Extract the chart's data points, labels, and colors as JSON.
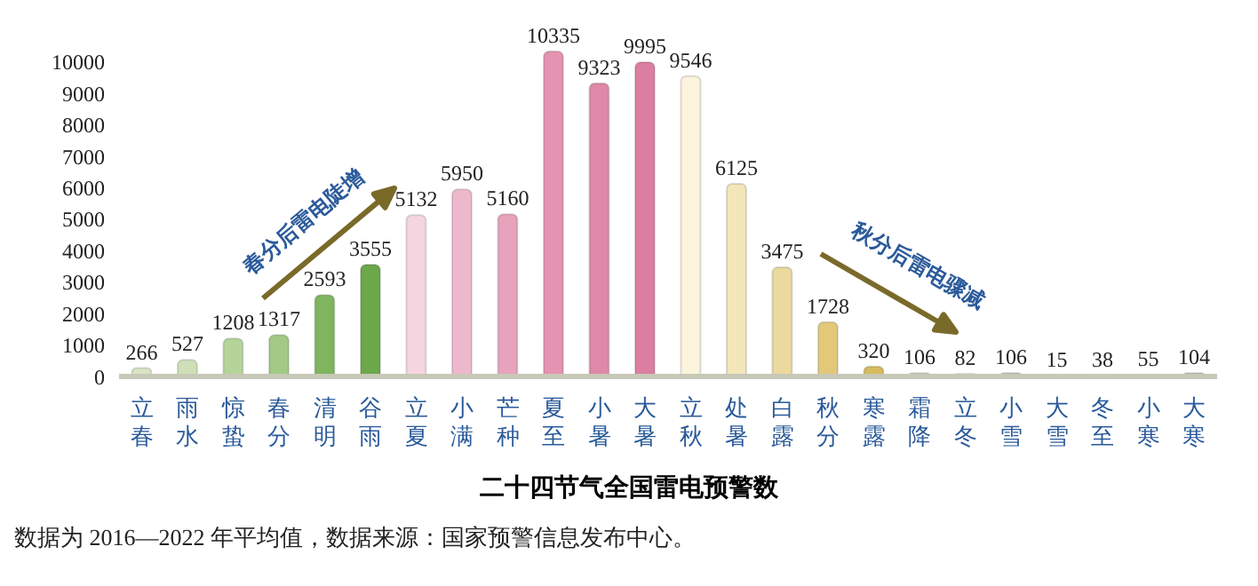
{
  "chart_data": {
    "type": "bar",
    "title": "二十四节气全国雷电预警数",
    "categories": [
      "立春",
      "雨水",
      "惊蛰",
      "春分",
      "清明",
      "谷雨",
      "立夏",
      "小满",
      "芒种",
      "夏至",
      "小暑",
      "大暑",
      "立秋",
      "处暑",
      "白露",
      "秋分",
      "寒露",
      "霜降",
      "立冬",
      "小雪",
      "大雪",
      "冬至",
      "小寒",
      "大寒"
    ],
    "values": [
      266,
      527,
      1208,
      1317,
      2593,
      3555,
      5132,
      5950,
      5160,
      10335,
      9323,
      9995,
      9546,
      6125,
      3475,
      1728,
      320,
      106,
      82,
      106,
      15,
      38,
      55,
      104
    ],
    "colors": [
      "#d8e4c4",
      "#cfe0b8",
      "#b5d49a",
      "#a2c985",
      "#7fb55e",
      "#6aa84a",
      "#f5d6e0",
      "#eeb8cc",
      "#e6a3bb",
      "#e494b0",
      "#e088a8",
      "#dc7ea0",
      "#fbf3dc",
      "#f3e6b8",
      "#ecd99e",
      "#e2c97a",
      "#d6bb5e",
      "#c9c7a8",
      "#c8c8b0",
      "#b9bca0",
      "#d8d8cc",
      "#d0d0c4",
      "#ccccbc",
      "#b8bc9c"
    ],
    "ylim": [
      0,
      10500
    ],
    "yticks": [
      0,
      1000,
      2000,
      3000,
      4000,
      5000,
      6000,
      7000,
      8000,
      9000,
      10000
    ],
    "data_labels": true,
    "grid": false,
    "legend": false,
    "annotations": [
      "春分后雷电陡增",
      "秋分后雷电骤减",
      "数据为 2016—2022 年平均值，数据来源：国家预警信息发布中心。"
    ]
  }
}
